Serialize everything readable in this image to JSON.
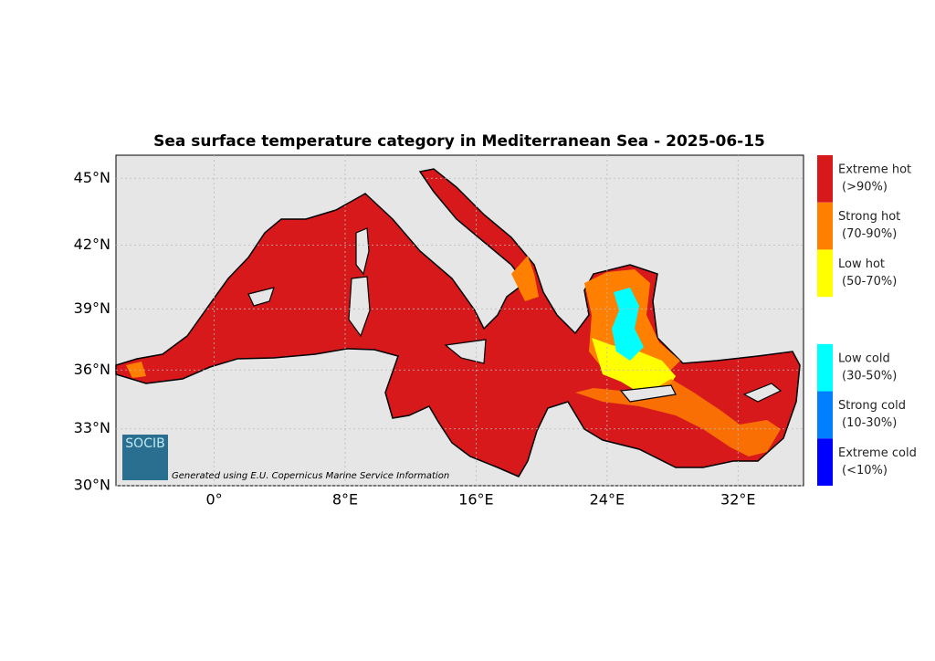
{
  "title": "Sea surface temperature category in Mediterranean Sea - 2025-06-15",
  "x_axis": {
    "range": [
      -6,
      36
    ],
    "ticks": [
      {
        "value": 0,
        "label": "0°"
      },
      {
        "value": 8,
        "label": "8°E"
      },
      {
        "value": 16,
        "label": "16°E"
      },
      {
        "value": 24,
        "label": "24°E"
      },
      {
        "value": 32,
        "label": "32°E"
      }
    ]
  },
  "y_axis": {
    "range": [
      30,
      46
    ],
    "ticks": [
      {
        "value": 45,
        "label": "45°N"
      },
      {
        "value": 42,
        "label": "42°N"
      },
      {
        "value": 39,
        "label": "39°N"
      },
      {
        "value": 36,
        "label": "36°N"
      },
      {
        "value": 33,
        "label": "33°N"
      },
      {
        "value": 30,
        "label": "30°N"
      }
    ]
  },
  "legend": [
    {
      "label": "Extreme hot",
      "range": "(>90%)",
      "color": "#d7191c"
    },
    {
      "label": "Strong hot",
      "range": "(70-90%)",
      "color": "#ff7f00"
    },
    {
      "label": "Low hot",
      "range": "(50-70%)",
      "color": "#ffff00"
    },
    {
      "label": "Low cold",
      "range": "(30-50%)",
      "color": "#00ffff"
    },
    {
      "label": "Strong cold",
      "range": "(10-30%)",
      "color": "#0080ff"
    },
    {
      "label": "Extreme cold",
      "range": "(<10%)",
      "color": "#0000ff"
    }
  ],
  "logo": "SOCIB",
  "credit": "Generated using E.U. Copernicus Marine Service Information"
}
